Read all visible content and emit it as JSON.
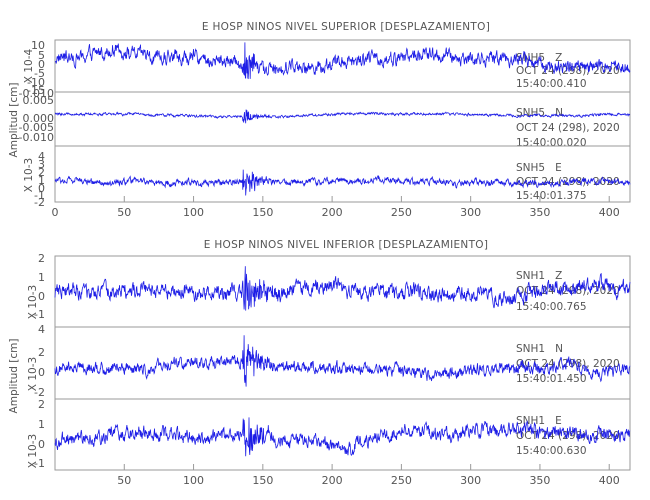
{
  "chart_data": [
    {
      "type": "line",
      "title": "E HOSP NINOS NIVEL SUPERIOR [DESPLAZAMIENTO]",
      "ylabel": "Amplitud [cm]",
      "xlim": [
        0,
        415
      ],
      "xticks": [
        "0",
        "50",
        "100",
        "150",
        "200",
        "250",
        "300",
        "350",
        "400"
      ],
      "panels": [
        {
          "station": "SNH5",
          "component": "Z",
          "date": "OCT 24 (298), 2020",
          "time": "15:40:00.410",
          "scale": "X 10-4",
          "yticks": [
            "10",
            "5",
            "0",
            "-5",
            "-10",
            "-15"
          ],
          "ylim": [
            -16,
            12
          ],
          "series": {
            "name": "SNH5 Z",
            "baseline": 2,
            "noise": 3.2,
            "quake_peak": 10,
            "quake_x": [
              135,
              165
            ]
          }
        },
        {
          "station": "SNH5",
          "component": "N",
          "date": "OCT 24 (298), 2020",
          "time": "15:40:00.020",
          "scale": "",
          "yticks": [
            "0.005",
            "0.000",
            "-0.005",
            "-0.010",
            "-0.010"
          ],
          "ylim": [
            -0.011,
            0.008
          ],
          "series": {
            "name": "SNH5 N",
            "baseline": 0,
            "noise": 0.0004,
            "quake_peak": 0.004,
            "quake_x": [
              135,
              155
            ]
          }
        },
        {
          "station": "SNH5",
          "component": "E",
          "date": "OCT 24 (298), 2020",
          "time": "15:40:01.375",
          "scale": "X 10-3",
          "yticks": [
            "4",
            "3",
            "2",
            "1",
            "0",
            "-1",
            "-2"
          ],
          "ylim": [
            -2.5,
            4.5
          ],
          "series": {
            "name": "SNH5 E",
            "baseline": 0,
            "noise": 0.35,
            "quake_peak": 2.6,
            "quake_x": [
              135,
              160
            ]
          }
        }
      ]
    },
    {
      "type": "line",
      "title": "E HOSP NINOS NIVEL INFERIOR [DESPLAZAMIENTO]",
      "ylabel": "Amplitud [cm]",
      "xlim": [
        0,
        415
      ],
      "xticks": [
        "50",
        "100",
        "150",
        "200",
        "250",
        "300",
        "350",
        "400"
      ],
      "panels": [
        {
          "station": "SNH1",
          "component": "Z",
          "date": "OCT 24 (298), 2020",
          "time": "15:40:00.765",
          "scale": "X 10-3",
          "yticks": [
            "2",
            "1",
            "0",
            "-1"
          ],
          "ylim": [
            -1.6,
            2.2
          ],
          "series": {
            "name": "SNH1 Z",
            "baseline": 0.2,
            "noise": 0.35,
            "quake_peak": 1.6,
            "quake_x": [
              135,
              170
            ]
          }
        },
        {
          "station": "SNH1",
          "component": "N",
          "date": "OCT 24 (298), 2020",
          "time": "15:40:01.450",
          "scale": "X 10-3",
          "yticks": [
            "4",
            "2",
            "0",
            "-2"
          ],
          "ylim": [
            -3,
            4.5
          ],
          "series": {
            "name": "SNH1 N",
            "baseline": 0.3,
            "noise": 0.55,
            "quake_peak": 3.2,
            "quake_x": [
              135,
              160
            ]
          }
        },
        {
          "station": "SNH1",
          "component": "E",
          "date": "OCT 24 (298), 2020",
          "time": "15:40:00.630",
          "scale": "X 10-3",
          "yticks": [
            "2",
            "1",
            "0",
            "-1"
          ],
          "ylim": [
            -1.6,
            2.6
          ],
          "series": {
            "name": "SNH1 E",
            "baseline": 0.3,
            "noise": 0.35,
            "quake_peak": 1.9,
            "quake_x": [
              135,
              160
            ]
          }
        }
      ]
    }
  ]
}
